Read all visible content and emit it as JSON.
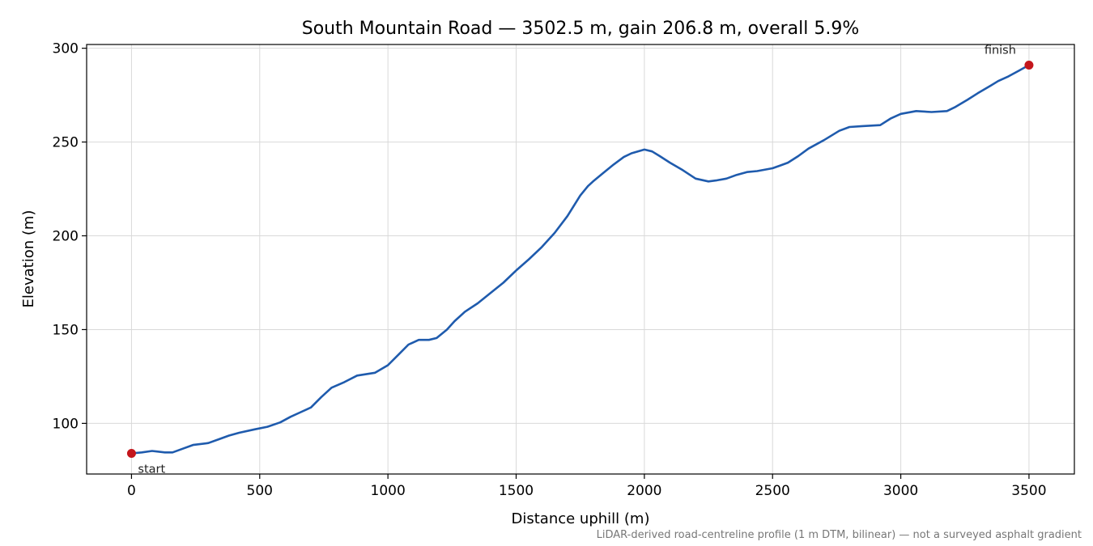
{
  "chart_data": {
    "type": "line",
    "title": "South Mountain Road — 3502.5 m, gain 206.8 m, overall 5.9%",
    "xlabel": "Distance uphill (m)",
    "ylabel": "Elevation (m)",
    "xlim": [
      -175,
      3677
    ],
    "ylim": [
      73,
      302
    ],
    "xticks": [
      0,
      500,
      1000,
      1500,
      2000,
      2500,
      3000,
      3500
    ],
    "yticks": [
      100,
      150,
      200,
      250,
      300
    ],
    "grid": true,
    "line_color": "#1f5bad",
    "marker_color": "#c4161c",
    "series": [
      {
        "x": [
          0,
          40,
          80,
          100,
          130,
          160,
          200,
          240,
          300,
          340,
          380,
          420,
          480,
          530,
          580,
          620,
          660,
          700,
          740,
          780,
          830,
          880,
          950,
          1000,
          1040,
          1080,
          1120,
          1160,
          1190,
          1230,
          1260,
          1300,
          1350,
          1400,
          1450,
          1500,
          1550,
          1600,
          1650,
          1700,
          1750,
          1780,
          1800,
          1840,
          1880,
          1920,
          1950,
          2000,
          2030,
          2060,
          2100,
          2150,
          2200,
          2250,
          2280,
          2320,
          2360,
          2400,
          2440,
          2500,
          2530,
          2560,
          2600,
          2640,
          2700,
          2760,
          2800,
          2850,
          2920,
          2960,
          3000,
          3060,
          3120,
          3180,
          3210,
          3260,
          3300,
          3350,
          3380,
          3420,
          3460,
          3500
        ],
        "y": [
          84,
          84.5,
          85.3,
          85.0,
          84.5,
          84.5,
          86.5,
          88.5,
          89.5,
          91.5,
          93.5,
          95.0,
          96.8,
          98.2,
          100.5,
          103.5,
          106.0,
          108.5,
          114,
          119,
          122,
          125.5,
          127,
          131,
          136.5,
          142,
          144.5,
          144.5,
          145.5,
          150,
          154.5,
          159.5,
          164,
          169.5,
          175,
          181.5,
          187.5,
          194,
          201.5,
          210.5,
          221.5,
          226.5,
          229,
          233.5,
          238,
          242,
          244,
          246,
          245,
          242.5,
          239,
          235,
          230.5,
          229,
          229.5,
          230.5,
          232.5,
          234,
          234.5,
          236,
          237.5,
          239,
          242.5,
          246.5,
          251,
          256,
          258,
          258.5,
          259,
          262.5,
          265,
          266.5,
          266,
          266.5,
          268.5,
          272.5,
          276,
          280,
          282.5,
          285,
          288,
          291
        ]
      }
    ],
    "markers": [
      {
        "label": "start",
        "x": 0,
        "y": 84
      },
      {
        "label": "finish",
        "x": 3500,
        "y": 291
      }
    ],
    "footnote": "LiDAR-derived road-centreline profile (1 m DTM, bilinear) — not a surveyed asphalt gradient"
  }
}
